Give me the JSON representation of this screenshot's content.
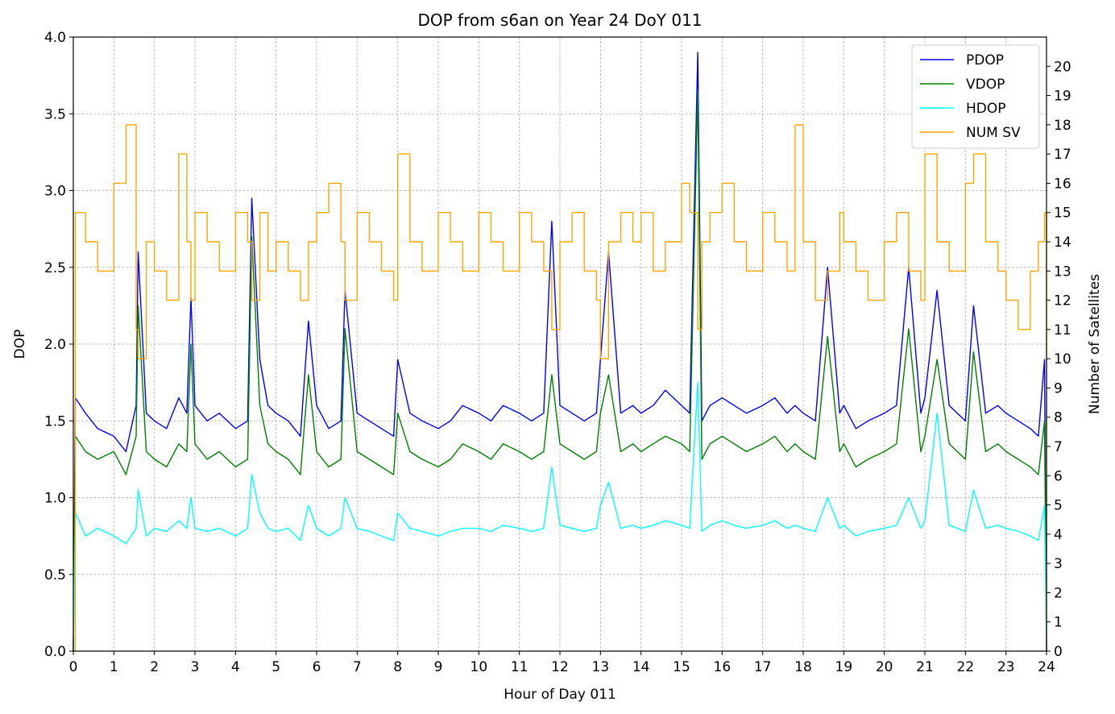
{
  "chart_data": {
    "type": "line",
    "title": "DOP from s6an on Year 24 DoY 011",
    "xlabel": "Hour of Day 011",
    "ylabel": "DOP",
    "y2label": "Number of Satellites",
    "xlim": [
      0,
      24
    ],
    "ylim": [
      0,
      4.0
    ],
    "y2lim": [
      0,
      21
    ],
    "x_ticks": [
      "0",
      "1",
      "2",
      "3",
      "4",
      "5",
      "6",
      "7",
      "8",
      "9",
      "10",
      "11",
      "12",
      "13",
      "14",
      "15",
      "16",
      "17",
      "18",
      "19",
      "20",
      "21",
      "22",
      "23",
      "24"
    ],
    "y_ticks": [
      "0.0",
      "0.5",
      "1.0",
      "1.5",
      "2.0",
      "2.5",
      "3.0",
      "3.5",
      "4.0"
    ],
    "y2_ticks": [
      "0",
      "1",
      "2",
      "3",
      "4",
      "5",
      "6",
      "7",
      "8",
      "9",
      "10",
      "11",
      "12",
      "13",
      "14",
      "15",
      "16",
      "17",
      "18",
      "19",
      "20"
    ],
    "grid": true,
    "legend_position": "top-right",
    "series": [
      {
        "name": "PDOP",
        "axis": "left",
        "color": "#0000ff",
        "x": [
          0,
          0.05,
          0.3,
          0.6,
          1.0,
          1.3,
          1.55,
          1.6,
          1.8,
          2.0,
          2.3,
          2.6,
          2.8,
          2.9,
          3.0,
          3.3,
          3.6,
          4.0,
          4.3,
          4.4,
          4.6,
          4.8,
          5.0,
          5.3,
          5.6,
          5.8,
          6.0,
          6.3,
          6.6,
          6.7,
          7.0,
          7.3,
          7.6,
          7.9,
          8.0,
          8.3,
          8.6,
          9.0,
          9.3,
          9.6,
          10.0,
          10.3,
          10.6,
          11.0,
          11.3,
          11.6,
          11.8,
          12.0,
          12.3,
          12.6,
          12.9,
          13.0,
          13.2,
          13.5,
          13.8,
          14.0,
          14.3,
          14.6,
          15.0,
          15.2,
          15.4,
          15.5,
          15.7,
          16.0,
          16.3,
          16.6,
          17.0,
          17.3,
          17.6,
          17.8,
          18.0,
          18.3,
          18.6,
          18.9,
          19.0,
          19.3,
          19.6,
          20.0,
          20.3,
          20.6,
          20.9,
          21.0,
          21.3,
          21.6,
          22.0,
          22.2,
          22.5,
          22.8,
          23.0,
          23.3,
          23.6,
          23.8,
          23.95,
          24.0
        ],
        "y": [
          0,
          1.65,
          1.55,
          1.45,
          1.4,
          1.3,
          1.6,
          2.6,
          1.55,
          1.5,
          1.45,
          1.65,
          1.55,
          2.3,
          1.6,
          1.5,
          1.55,
          1.45,
          1.5,
          2.95,
          1.9,
          1.6,
          1.55,
          1.5,
          1.4,
          2.15,
          1.6,
          1.45,
          1.5,
          2.35,
          1.55,
          1.5,
          1.45,
          1.4,
          1.9,
          1.55,
          1.5,
          1.45,
          1.5,
          1.6,
          1.55,
          1.5,
          1.6,
          1.55,
          1.5,
          1.55,
          2.8,
          1.6,
          1.55,
          1.5,
          1.55,
          1.9,
          2.6,
          1.55,
          1.6,
          1.55,
          1.6,
          1.7,
          1.6,
          1.55,
          3.9,
          1.5,
          1.6,
          1.65,
          1.6,
          1.55,
          1.6,
          1.65,
          1.55,
          1.6,
          1.55,
          1.5,
          2.5,
          1.55,
          1.6,
          1.45,
          1.5,
          1.55,
          1.6,
          2.5,
          1.55,
          1.65,
          2.35,
          1.6,
          1.5,
          2.25,
          1.55,
          1.6,
          1.55,
          1.5,
          1.45,
          1.4,
          1.9,
          0
        ]
      },
      {
        "name": "VDOP",
        "axis": "left",
        "color": "#008000",
        "x": [
          0,
          0.05,
          0.3,
          0.6,
          1.0,
          1.3,
          1.55,
          1.6,
          1.8,
          2.0,
          2.3,
          2.6,
          2.8,
          2.9,
          3.0,
          3.3,
          3.6,
          4.0,
          4.3,
          4.4,
          4.6,
          4.8,
          5.0,
          5.3,
          5.6,
          5.8,
          6.0,
          6.3,
          6.6,
          6.7,
          7.0,
          7.3,
          7.6,
          7.9,
          8.0,
          8.3,
          8.6,
          9.0,
          9.3,
          9.6,
          10.0,
          10.3,
          10.6,
          11.0,
          11.3,
          11.6,
          11.8,
          12.0,
          12.3,
          12.6,
          12.9,
          13.0,
          13.2,
          13.5,
          13.8,
          14.0,
          14.3,
          14.6,
          15.0,
          15.2,
          15.4,
          15.5,
          15.7,
          16.0,
          16.3,
          16.6,
          17.0,
          17.3,
          17.6,
          17.8,
          18.0,
          18.3,
          18.6,
          18.9,
          19.0,
          19.3,
          19.6,
          20.0,
          20.3,
          20.6,
          20.9,
          21.0,
          21.3,
          21.6,
          22.0,
          22.2,
          22.5,
          22.8,
          23.0,
          23.3,
          23.6,
          23.8,
          23.95,
          24.0
        ],
        "y": [
          0,
          1.4,
          1.3,
          1.25,
          1.3,
          1.15,
          1.4,
          2.25,
          1.3,
          1.25,
          1.2,
          1.35,
          1.3,
          2.0,
          1.35,
          1.25,
          1.3,
          1.2,
          1.25,
          2.7,
          1.6,
          1.35,
          1.3,
          1.25,
          1.15,
          1.8,
          1.3,
          1.2,
          1.25,
          2.1,
          1.3,
          1.25,
          1.2,
          1.15,
          1.55,
          1.3,
          1.25,
          1.2,
          1.25,
          1.35,
          1.3,
          1.25,
          1.35,
          1.3,
          1.25,
          1.3,
          1.8,
          1.35,
          1.3,
          1.25,
          1.3,
          1.55,
          1.8,
          1.3,
          1.35,
          1.3,
          1.35,
          1.4,
          1.35,
          1.3,
          3.65,
          1.25,
          1.35,
          1.4,
          1.35,
          1.3,
          1.35,
          1.4,
          1.3,
          1.35,
          1.3,
          1.25,
          2.05,
          1.3,
          1.35,
          1.2,
          1.25,
          1.3,
          1.35,
          2.1,
          1.3,
          1.4,
          1.9,
          1.35,
          1.25,
          1.95,
          1.3,
          1.35,
          1.3,
          1.25,
          1.2,
          1.15,
          1.5,
          0
        ]
      },
      {
        "name": "HDOP",
        "axis": "left",
        "color": "#00ffff",
        "x": [
          0,
          0.05,
          0.3,
          0.6,
          1.0,
          1.3,
          1.55,
          1.6,
          1.8,
          2.0,
          2.3,
          2.6,
          2.8,
          2.9,
          3.0,
          3.3,
          3.6,
          4.0,
          4.3,
          4.4,
          4.6,
          4.8,
          5.0,
          5.3,
          5.6,
          5.8,
          6.0,
          6.3,
          6.6,
          6.7,
          7.0,
          7.3,
          7.6,
          7.9,
          8.0,
          8.3,
          8.6,
          9.0,
          9.3,
          9.6,
          10.0,
          10.3,
          10.6,
          11.0,
          11.3,
          11.6,
          11.8,
          12.0,
          12.3,
          12.6,
          12.9,
          13.0,
          13.2,
          13.5,
          13.8,
          14.0,
          14.3,
          14.6,
          15.0,
          15.2,
          15.4,
          15.5,
          15.7,
          16.0,
          16.3,
          16.6,
          17.0,
          17.3,
          17.6,
          17.8,
          18.0,
          18.3,
          18.6,
          18.9,
          19.0,
          19.3,
          19.6,
          20.0,
          20.3,
          20.6,
          20.9,
          21.0,
          21.3,
          21.6,
          22.0,
          22.2,
          22.5,
          22.8,
          23.0,
          23.3,
          23.6,
          23.8,
          23.95,
          24.0
        ],
        "y": [
          0,
          0.9,
          0.75,
          0.8,
          0.75,
          0.7,
          0.8,
          1.05,
          0.75,
          0.8,
          0.78,
          0.85,
          0.8,
          1.0,
          0.8,
          0.78,
          0.8,
          0.75,
          0.8,
          1.15,
          0.9,
          0.8,
          0.78,
          0.8,
          0.72,
          0.95,
          0.8,
          0.75,
          0.8,
          1.0,
          0.8,
          0.78,
          0.75,
          0.72,
          0.9,
          0.8,
          0.78,
          0.75,
          0.78,
          0.8,
          0.8,
          0.78,
          0.82,
          0.8,
          0.78,
          0.8,
          1.2,
          0.82,
          0.8,
          0.78,
          0.8,
          0.95,
          1.1,
          0.8,
          0.82,
          0.8,
          0.82,
          0.85,
          0.82,
          0.8,
          1.75,
          0.78,
          0.82,
          0.85,
          0.82,
          0.8,
          0.82,
          0.85,
          0.8,
          0.82,
          0.8,
          0.78,
          1.0,
          0.8,
          0.82,
          0.75,
          0.78,
          0.8,
          0.82,
          1.0,
          0.8,
          0.85,
          1.55,
          0.82,
          0.78,
          1.05,
          0.8,
          0.82,
          0.8,
          0.78,
          0.75,
          0.72,
          0.95,
          0
        ]
      },
      {
        "name": "NUM SV",
        "axis": "right",
        "color": "#ffa500",
        "x": [
          0,
          0.05,
          0.3,
          0.6,
          1.0,
          1.3,
          1.55,
          1.6,
          1.8,
          2.0,
          2.3,
          2.6,
          2.8,
          2.9,
          3.0,
          3.3,
          3.6,
          4.0,
          4.3,
          4.4,
          4.6,
          4.8,
          5.0,
          5.3,
          5.6,
          5.8,
          6.0,
          6.3,
          6.6,
          6.7,
          7.0,
          7.3,
          7.6,
          7.9,
          8.0,
          8.3,
          8.6,
          9.0,
          9.3,
          9.6,
          10.0,
          10.3,
          10.6,
          11.0,
          11.3,
          11.6,
          11.8,
          12.0,
          12.3,
          12.6,
          12.9,
          13.0,
          13.2,
          13.5,
          13.8,
          14.0,
          14.3,
          14.6,
          15.0,
          15.2,
          15.4,
          15.5,
          15.7,
          16.0,
          16.3,
          16.6,
          17.0,
          17.3,
          17.6,
          17.8,
          18.0,
          18.3,
          18.6,
          18.9,
          19.0,
          19.3,
          19.6,
          20.0,
          20.3,
          20.6,
          20.9,
          21.0,
          21.3,
          21.6,
          22.0,
          22.2,
          22.5,
          22.8,
          23.0,
          23.3,
          23.6,
          23.8,
          23.95,
          24.0
        ],
        "y": [
          0,
          15,
          14,
          13,
          16,
          18,
          11,
          10,
          14,
          13,
          12,
          17,
          14,
          12,
          15,
          14,
          13,
          15,
          14,
          12,
          15,
          13,
          14,
          13,
          12,
          14,
          15,
          16,
          14,
          12,
          15,
          14,
          13,
          12,
          17,
          14,
          13,
          15,
          14,
          13,
          15,
          14,
          13,
          15,
          14,
          13,
          11,
          14,
          15,
          13,
          12,
          10,
          14,
          15,
          14,
          15,
          13,
          14,
          16,
          15,
          11,
          14,
          15,
          16,
          14,
          13,
          15,
          14,
          13,
          18,
          14,
          12,
          13,
          15,
          14,
          13,
          12,
          14,
          15,
          13,
          12,
          17,
          14,
          13,
          16,
          17,
          14,
          13,
          12,
          11,
          13,
          14,
          15,
          0
        ]
      }
    ]
  }
}
